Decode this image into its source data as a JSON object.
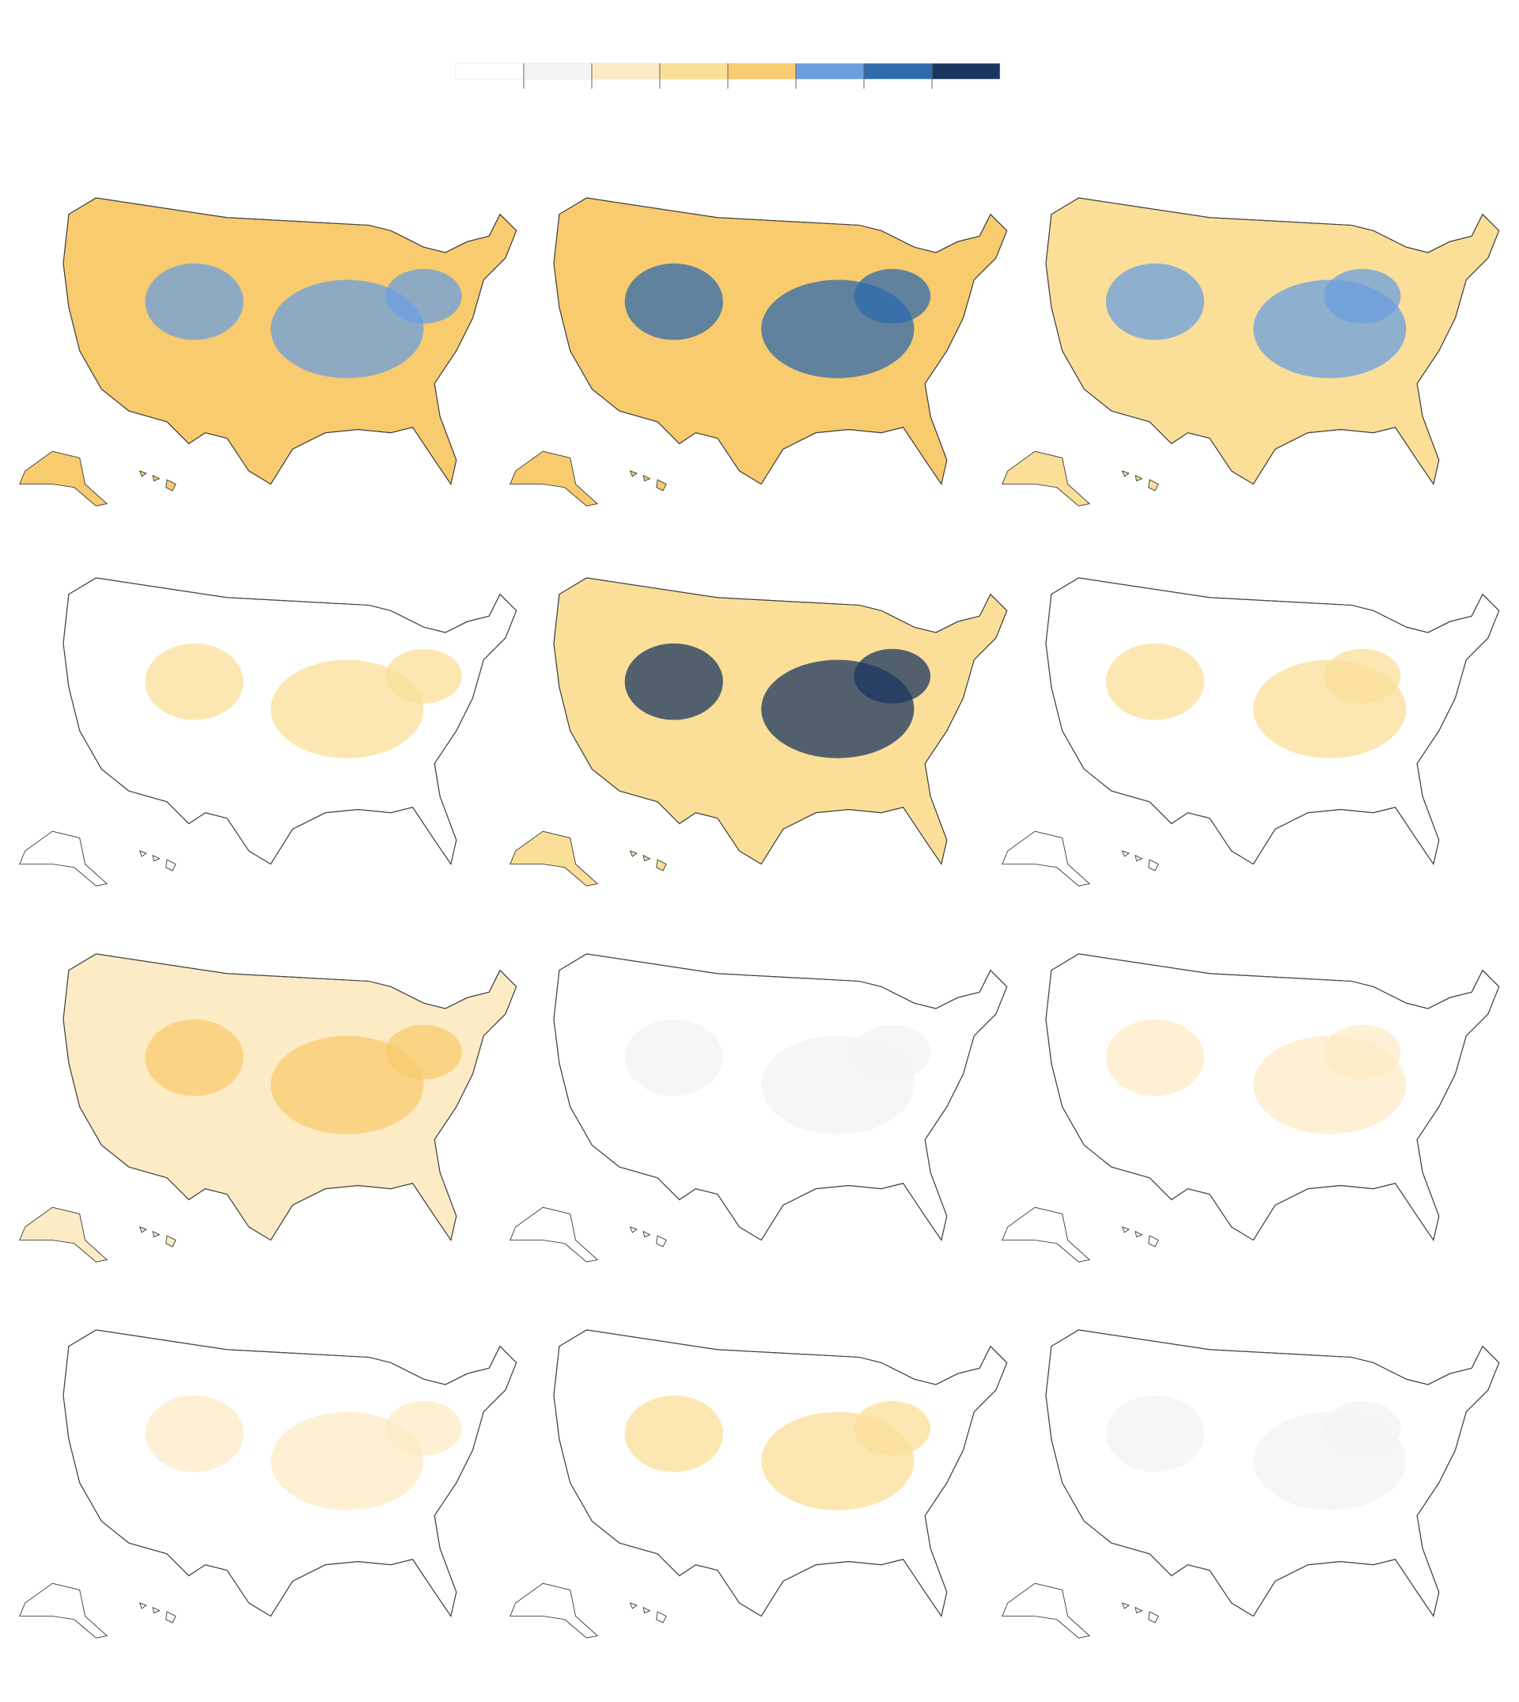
{
  "legend": {
    "colors": [
      "#ffffff",
      "#f3f3f5",
      "#fdebc6",
      "#fbdf98",
      "#f8cb6e",
      "#6b9fe0",
      "#2d6aae",
      "#1a3560"
    ]
  },
  "maps": [
    {
      "fill": "#f8cb6e",
      "accent": "#6b9fe0"
    },
    {
      "fill": "#f8cb6e",
      "accent": "#2d6aae"
    },
    {
      "fill": "#fbdf98",
      "accent": "#6b9fe0"
    },
    {
      "fill": "#ffffff",
      "accent": "#fbdf98"
    },
    {
      "fill": "#fbdf98",
      "accent": "#1a3560"
    },
    {
      "fill": "#ffffff",
      "accent": "#fbdf98"
    },
    {
      "fill": "#fdebc6",
      "accent": "#f8cb6e"
    },
    {
      "fill": "#ffffff",
      "accent": "#f3f3f5"
    },
    {
      "fill": "#ffffff",
      "accent": "#fdebc6"
    },
    {
      "fill": "#ffffff",
      "accent": "#fdebc6"
    },
    {
      "fill": "#ffffff",
      "accent": "#fbdf98"
    },
    {
      "fill": "#ffffff",
      "accent": "#f3f3f5"
    }
  ]
}
